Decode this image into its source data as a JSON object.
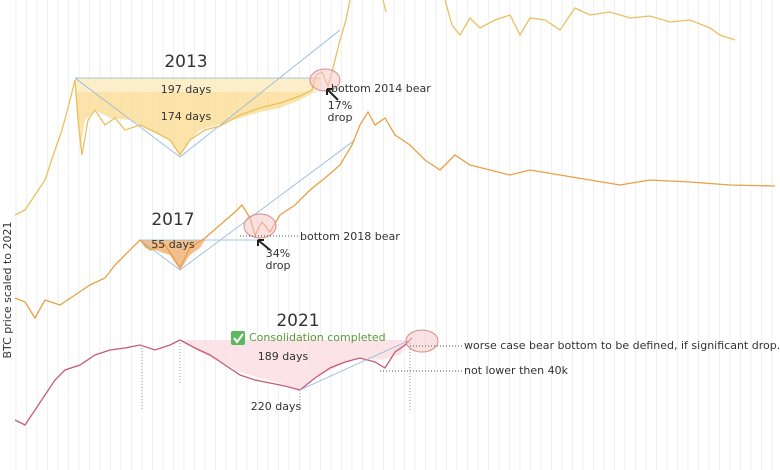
{
  "y_axis_label": "BTC price scaled to 2021",
  "cycles": [
    {
      "year": "2013",
      "durations": [
        "197 days",
        "174 days"
      ],
      "bottom_label": "bottom 2014 bear",
      "drop": [
        "17%",
        "drop"
      ]
    },
    {
      "year": "2017",
      "durations": [
        "55 days"
      ],
      "bottom_label": "bottom 2018 bear",
      "drop": [
        "34%",
        "drop"
      ]
    },
    {
      "year": "2021",
      "status": "Consolidation completed",
      "durations": [
        "189  days",
        "220 days"
      ],
      "notes": [
        "worse case bear bottom to be defined, if significant drop.",
        "not lower then 40k"
      ]
    }
  ]
}
